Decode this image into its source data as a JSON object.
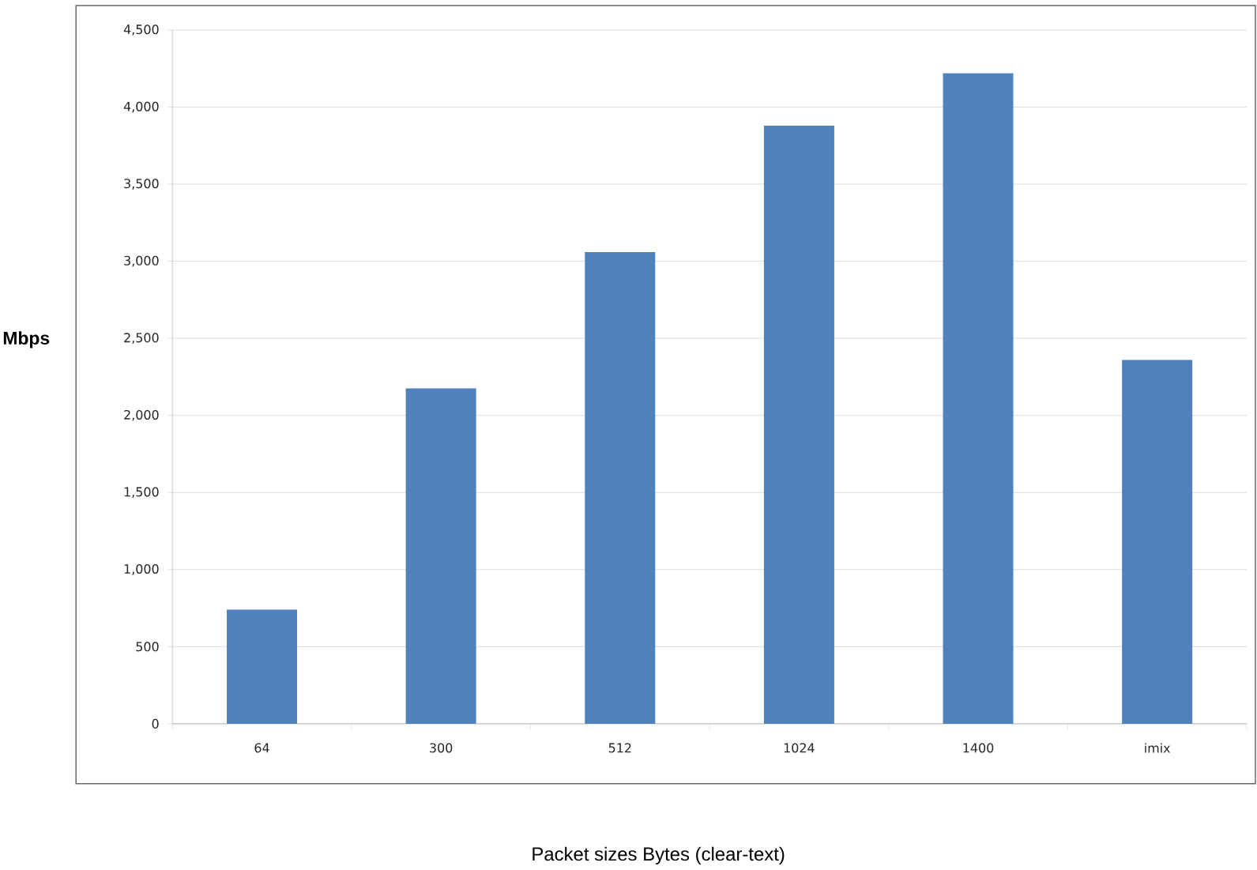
{
  "chart_data": {
    "type": "bar",
    "xlabel": "Packet sizes Bytes (clear-text)",
    "ylabel": "Mbps",
    "categories": [
      "64",
      "300",
      "512",
      "1024",
      "1400",
      "imix"
    ],
    "values": [
      740,
      2175,
      3060,
      3880,
      4220,
      2360
    ],
    "color": "#4f81bd",
    "ylim": [
      0,
      4500
    ],
    "yticks": [
      {
        "value": 0,
        "label": "0"
      },
      {
        "value": 500,
        "label": "500"
      },
      {
        "value": 1000,
        "label": "1,000"
      },
      {
        "value": 1500,
        "label": "1,500"
      },
      {
        "value": 2000,
        "label": "2,000"
      },
      {
        "value": 2500,
        "label": "2,500"
      },
      {
        "value": 3000,
        "label": "3,000"
      },
      {
        "value": 3500,
        "label": "3,500"
      },
      {
        "value": 4000,
        "label": "4,000"
      },
      {
        "value": 4500,
        "label": "4,500"
      }
    ],
    "grid": "y"
  }
}
